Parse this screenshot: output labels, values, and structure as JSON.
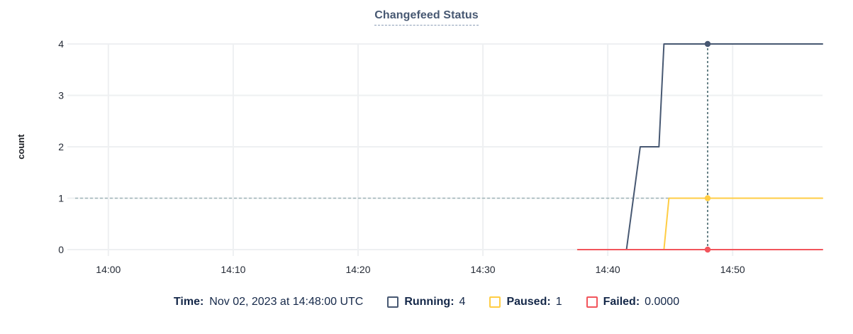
{
  "chart_data": {
    "type": "line",
    "title": "Changefeed Status",
    "xlabel": "",
    "ylabel": "count",
    "x_unit": "minutes after 14:00",
    "xlim": [
      -3.0,
      57.2
    ],
    "ylim": [
      0,
      4
    ],
    "yticks": [
      0,
      1,
      2,
      3,
      4
    ],
    "xticks": [
      {
        "t": 0,
        "label": "14:00"
      },
      {
        "t": 10,
        "label": "14:10"
      },
      {
        "t": 20,
        "label": "14:20"
      },
      {
        "t": 30,
        "label": "14:30"
      },
      {
        "t": 40,
        "label": "14:40"
      },
      {
        "t": 50,
        "label": "14:50"
      }
    ],
    "grid": true,
    "legend_position": "bottom",
    "series": [
      {
        "name": "Running",
        "color": "#475872",
        "points": [
          [
            37.6,
            0
          ],
          [
            41.5,
            0
          ],
          [
            42.6,
            2
          ],
          [
            44.1,
            2
          ],
          [
            44.5,
            4
          ],
          [
            57.2,
            4
          ]
        ]
      },
      {
        "name": "Paused",
        "color": "#ffcd44",
        "points": [
          [
            37.6,
            0
          ],
          [
            44.5,
            0
          ],
          [
            44.9,
            1
          ],
          [
            57.2,
            1
          ]
        ]
      },
      {
        "name": "Failed",
        "color": "#f2555c",
        "points": [
          [
            37.6,
            0
          ],
          [
            57.2,
            0
          ]
        ]
      }
    ],
    "hover": {
      "t": 48,
      "time_label": "14:48:00",
      "value_guide_y": 1,
      "markers": [
        {
          "series": "Running",
          "value": 4
        },
        {
          "series": "Paused",
          "value": 1
        },
        {
          "series": "Failed",
          "value": 0
        }
      ]
    }
  },
  "legend": {
    "time_label": "Time:",
    "time_value": "Nov 02, 2023 at 14:48:00 UTC",
    "items": [
      {
        "label": "Running:",
        "value": "4",
        "color": "#475872"
      },
      {
        "label": "Paused:",
        "value": "1",
        "color": "#ffcd44"
      },
      {
        "label": "Failed:",
        "value": "0.0000",
        "color": "#f2555c"
      }
    ]
  },
  "colors": {
    "background": "#ffffff",
    "grid": "#eef0f2",
    "axis_text": "#242a35",
    "ylabel_text": "#1b1e23",
    "title_text": "#475872",
    "title_underline": "#8a9cb5",
    "legend_text": "#152849",
    "value_guide": "#9eb3b6",
    "crosshair": "#45656b"
  }
}
